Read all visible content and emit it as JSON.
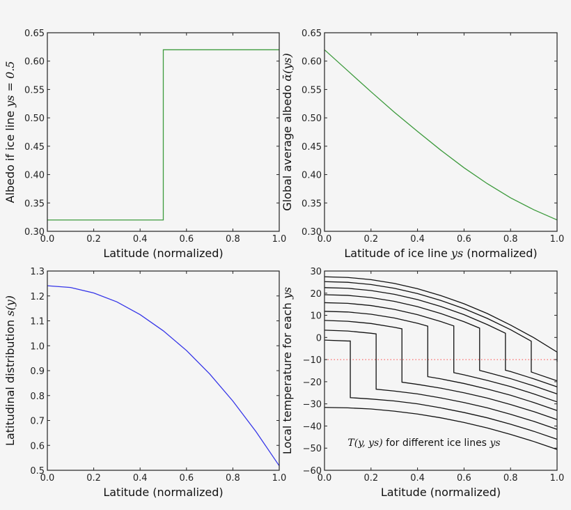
{
  "chart_data": [
    {
      "type": "line",
      "xlabel": [
        {
          "t": "Latitude (normalized)"
        }
      ],
      "ylabel": [
        {
          "t": "Albedo if ice line "
        },
        {
          "t": "ys = 0.5",
          "math": true
        }
      ],
      "xlim": [
        0,
        1
      ],
      "ylim": [
        0.3,
        0.65
      ],
      "xticks": [
        "0.0",
        "0.2",
        "0.4",
        "0.6",
        "0.8",
        "1.0"
      ],
      "yticks": [
        "0.30",
        "0.35",
        "0.40",
        "0.45",
        "0.50",
        "0.55",
        "0.60",
        "0.65"
      ],
      "grid": false,
      "series": [
        {
          "color": "#3c9a3c",
          "points": [
            [
              0,
              0.32
            ],
            [
              0.5,
              0.32
            ],
            [
              0.5,
              0.62
            ],
            [
              1,
              0.62
            ]
          ]
        }
      ]
    },
    {
      "type": "line",
      "xlabel": [
        {
          "t": "Latitude of ice line "
        },
        {
          "t": "ys",
          "math": true
        },
        {
          "t": " (normalized)"
        }
      ],
      "ylabel": [
        {
          "t": "Global average albedo "
        },
        {
          "t": "ᾱ(ys)",
          "math": true
        }
      ],
      "xlim": [
        0,
        1
      ],
      "ylim": [
        0.3,
        0.65
      ],
      "xticks": [
        "0.0",
        "0.2",
        "0.4",
        "0.6",
        "0.8",
        "1.0"
      ],
      "yticks": [
        "0.30",
        "0.35",
        "0.40",
        "0.45",
        "0.50",
        "0.55",
        "0.60",
        "0.65"
      ],
      "grid": false,
      "series": [
        {
          "color": "#3c9a3c",
          "points": [
            [
              0,
              0.62
            ],
            [
              0.1,
              0.583
            ],
            [
              0.2,
              0.546
            ],
            [
              0.3,
              0.51
            ],
            [
              0.4,
              0.476
            ],
            [
              0.5,
              0.443
            ],
            [
              0.6,
              0.412
            ],
            [
              0.7,
              0.384
            ],
            [
              0.8,
              0.359
            ],
            [
              0.9,
              0.338
            ],
            [
              1.0,
              0.32
            ]
          ]
        }
      ]
    },
    {
      "type": "line",
      "xlabel": [
        {
          "t": "Latitude (normalized)"
        }
      ],
      "ylabel": [
        {
          "t": "Latitudinal distribution "
        },
        {
          "t": "s(y)",
          "math": true
        }
      ],
      "xlim": [
        0,
        1
      ],
      "ylim": [
        0.5,
        1.3
      ],
      "xticks": [
        "0.0",
        "0.2",
        "0.4",
        "0.6",
        "0.8",
        "1.0"
      ],
      "yticks": [
        "0.5",
        "0.6",
        "0.7",
        "0.8",
        "0.9",
        "1.0",
        "1.1",
        "1.2",
        "1.3"
      ],
      "grid": false,
      "series": [
        {
          "color": "#3535e8",
          "points": [
            [
              0,
              1.241
            ],
            [
              0.1,
              1.234
            ],
            [
              0.2,
              1.212
            ],
            [
              0.3,
              1.176
            ],
            [
              0.4,
              1.125
            ],
            [
              0.5,
              1.06
            ],
            [
              0.6,
              0.981
            ],
            [
              0.7,
              0.887
            ],
            [
              0.8,
              0.778
            ],
            [
              0.9,
              0.655
            ],
            [
              1.0,
              0.518
            ]
          ]
        }
      ]
    },
    {
      "type": "line",
      "xlabel": [
        {
          "t": "Latitude (normalized)"
        }
      ],
      "ylabel": [
        {
          "t": "Local temperature for each "
        },
        {
          "t": "ys",
          "math": true
        }
      ],
      "xlim": [
        0,
        1
      ],
      "ylim": [
        -60,
        30
      ],
      "xticks": [
        "0.0",
        "0.2",
        "0.4",
        "0.6",
        "0.8",
        "1.0"
      ],
      "yticks": [
        "−60",
        "−50",
        "−40",
        "−30",
        "−20",
        "−10",
        "0",
        "10",
        "20",
        "30"
      ],
      "grid": false,
      "reference_line": {
        "y": -10,
        "color": "#ff4444",
        "style": "dotted"
      },
      "annotation": {
        "x": 0.1,
        "y": -49,
        "parts": [
          {
            "t": "T(y, ys)",
            "math": true
          },
          {
            "t": " for different ice lines "
          },
          {
            "t": "ys",
            "math": true
          }
        ]
      },
      "series": [
        {
          "color": "#111111",
          "ice_line": 0,
          "points": [
            [
              0,
              -31.6
            ],
            [
              0.1,
              -31.8
            ],
            [
              0.2,
              -32.3
            ],
            [
              0.3,
              -33.3
            ],
            [
              0.4,
              -34.6
            ],
            [
              0.5,
              -36.3
            ],
            [
              0.6,
              -38.4
            ],
            [
              0.7,
              -40.9
            ],
            [
              0.8,
              -43.8
            ],
            [
              0.9,
              -47.0
            ],
            [
              1,
              -50.6
            ]
          ]
        },
        {
          "color": "#111111",
          "ice_line": 0.111,
          "points": [
            [
              0,
              -1.2
            ],
            [
              0.1,
              -1.6
            ],
            [
              0.111,
              -1.6
            ],
            [
              0.111,
              -27.2
            ],
            [
              0.2,
              -27.8
            ],
            [
              0.3,
              -28.7
            ],
            [
              0.4,
              -30.0
            ],
            [
              0.5,
              -31.8
            ],
            [
              0.6,
              -33.9
            ],
            [
              0.7,
              -36.3
            ],
            [
              0.8,
              -39.2
            ],
            [
              0.9,
              -42.4
            ],
            [
              1,
              -46.0
            ]
          ]
        },
        {
          "color": "#111111",
          "ice_line": 0.222,
          "points": [
            [
              0,
              3.3
            ],
            [
              0.1,
              2.9
            ],
            [
              0.2,
              1.9
            ],
            [
              0.222,
              1.6
            ],
            [
              0.222,
              -23.4
            ],
            [
              0.3,
              -24.2
            ],
            [
              0.4,
              -25.5
            ],
            [
              0.5,
              -27.3
            ],
            [
              0.6,
              -29.4
            ],
            [
              0.7,
              -31.8
            ],
            [
              0.8,
              -34.7
            ],
            [
              0.9,
              -37.9
            ],
            [
              1,
              -41.5
            ]
          ]
        },
        {
          "color": "#111111",
          "ice_line": 0.333,
          "points": [
            [
              0,
              7.7
            ],
            [
              0.1,
              7.3
            ],
            [
              0.2,
              6.3
            ],
            [
              0.3,
              4.6
            ],
            [
              0.333,
              3.9
            ],
            [
              0.333,
              -20.2
            ],
            [
              0.4,
              -21.2
            ],
            [
              0.5,
              -22.9
            ],
            [
              0.6,
              -25.0
            ],
            [
              0.7,
              -27.4
            ],
            [
              0.8,
              -30.3
            ],
            [
              0.9,
              -33.5
            ],
            [
              1,
              -37.1
            ]
          ]
        },
        {
          "color": "#111111",
          "ice_line": 0.444,
          "points": [
            [
              0,
              11.8
            ],
            [
              0.1,
              11.5
            ],
            [
              0.2,
              10.5
            ],
            [
              0.3,
              8.8
            ],
            [
              0.4,
              6.4
            ],
            [
              0.444,
              5.1
            ],
            [
              0.444,
              -17.7
            ],
            [
              0.5,
              -18.7
            ],
            [
              0.6,
              -20.8
            ],
            [
              0.7,
              -23.3
            ],
            [
              0.8,
              -26.1
            ],
            [
              0.9,
              -29.4
            ],
            [
              1,
              -33.0
            ]
          ]
        },
        {
          "color": "#111111",
          "ice_line": 0.556,
          "points": [
            [
              0,
              15.7
            ],
            [
              0.1,
              15.4
            ],
            [
              0.2,
              14.4
            ],
            [
              0.3,
              12.7
            ],
            [
              0.4,
              10.3
            ],
            [
              0.5,
              7.2
            ],
            [
              0.556,
              5.2
            ],
            [
              0.556,
              -15.9
            ],
            [
              0.6,
              -16.9
            ],
            [
              0.7,
              -19.4
            ],
            [
              0.8,
              -22.2
            ],
            [
              0.9,
              -25.5
            ],
            [
              1,
              -29.1
            ]
          ]
        },
        {
          "color": "#111111",
          "ice_line": 0.667,
          "points": [
            [
              0,
              19.3
            ],
            [
              0.1,
              19.0
            ],
            [
              0.2,
              18.0
            ],
            [
              0.3,
              16.3
            ],
            [
              0.4,
              13.9
            ],
            [
              0.5,
              10.8
            ],
            [
              0.6,
              7.1
            ],
            [
              0.667,
              4.2
            ],
            [
              0.667,
              -14.9
            ],
            [
              0.7,
              -15.8
            ],
            [
              0.8,
              -18.6
            ],
            [
              0.9,
              -21.9
            ],
            [
              1,
              -25.5
            ]
          ]
        },
        {
          "color": "#111111",
          "ice_line": 0.778,
          "points": [
            [
              0,
              22.5
            ],
            [
              0.1,
              22.2
            ],
            [
              0.2,
              21.2
            ],
            [
              0.3,
              19.5
            ],
            [
              0.4,
              17.1
            ],
            [
              0.5,
              14.0
            ],
            [
              0.6,
              10.3
            ],
            [
              0.7,
              5.8
            ],
            [
              0.778,
              1.9
            ],
            [
              0.778,
              -14.8
            ],
            [
              0.8,
              -15.4
            ],
            [
              0.9,
              -18.7
            ],
            [
              1,
              -22.3
            ]
          ]
        },
        {
          "color": "#111111",
          "ice_line": 0.889,
          "points": [
            [
              0,
              25.2
            ],
            [
              0.1,
              24.9
            ],
            [
              0.2,
              23.9
            ],
            [
              0.3,
              22.2
            ],
            [
              0.4,
              19.8
            ],
            [
              0.5,
              16.7
            ],
            [
              0.6,
              13.0
            ],
            [
              0.7,
              8.6
            ],
            [
              0.8,
              3.5
            ],
            [
              0.889,
              -1.7
            ],
            [
              0.889,
              -15.6
            ],
            [
              0.9,
              -16.0
            ],
            [
              1,
              -19.6
            ]
          ]
        },
        {
          "color": "#111111",
          "ice_line": 1.0,
          "points": [
            [
              0,
              27.4
            ],
            [
              0.1,
              27.1
            ],
            [
              0.2,
              26.1
            ],
            [
              0.3,
              24.4
            ],
            [
              0.4,
              22.0
            ],
            [
              0.5,
              18.9
            ],
            [
              0.6,
              15.2
            ],
            [
              0.7,
              10.8
            ],
            [
              0.8,
              5.6
            ],
            [
              0.9,
              -0.1
            ],
            [
              1,
              -6.6
            ],
            [
              1,
              -11
            ]
          ]
        }
      ]
    }
  ]
}
